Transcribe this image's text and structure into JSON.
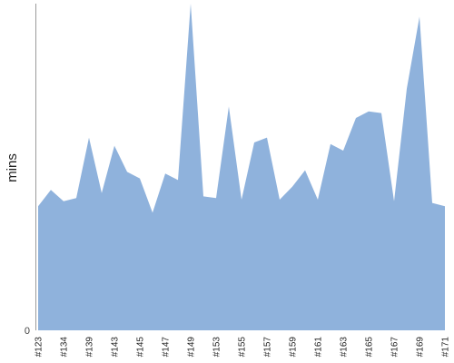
{
  "chart_data": {
    "type": "area",
    "ylabel": "mins",
    "y_tick_labels": [
      "0"
    ],
    "x_tick_labels": [
      "#123",
      "#134",
      "#139",
      "#143",
      "#145",
      "#147",
      "#149",
      "#153",
      "#155",
      "#157",
      "#159",
      "#161",
      "#163",
      "#165",
      "#167",
      "#169",
      "#171"
    ],
    "ylim": [
      0,
      100
    ],
    "grid": false,
    "legend": "none",
    "series": [
      {
        "color": "#8FB2DC",
        "values": [
          38,
          43,
          39.5,
          40.5,
          59,
          42,
          56.5,
          48.5,
          46.5,
          36,
          48,
          46,
          100,
          41,
          40.5,
          68.5,
          40,
          57.5,
          59,
          40,
          44,
          49,
          40,
          57,
          55,
          65,
          67,
          66.5,
          39.5,
          74,
          96,
          39,
          38
        ]
      }
    ]
  }
}
